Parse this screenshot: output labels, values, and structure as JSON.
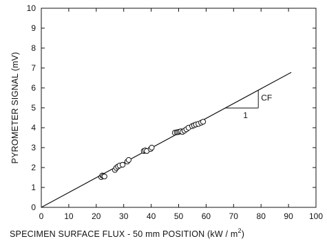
{
  "chart_data": {
    "type": "scatter",
    "title": "",
    "xlabel": "SPECIMEN SURFACE FLUX - 50  mm POSITION (kW / m",
    "xlabel_superscript": "2",
    "xlabel_suffix": ")",
    "ylabel": "PYROMETER SIGNAL (mV)",
    "xlim": [
      0,
      100
    ],
    "ylim": [
      0,
      10
    ],
    "x_ticks": [
      "0",
      "10",
      "20",
      "30",
      "40",
      "50",
      "60",
      "70",
      "80",
      "90",
      "100"
    ],
    "y_ticks": [
      "0",
      "1",
      "2",
      "3",
      "4",
      "5",
      "6",
      "7",
      "8",
      "9",
      "10"
    ],
    "grid": false,
    "points": [
      [
        21.8,
        1.52
      ],
      [
        22.2,
        1.6
      ],
      [
        22.6,
        1.57
      ],
      [
        23.0,
        1.55
      ],
      [
        26.8,
        1.88
      ],
      [
        27.3,
        1.98
      ],
      [
        27.9,
        2.05
      ],
      [
        28.5,
        2.1
      ],
      [
        29.6,
        2.14
      ],
      [
        31.3,
        2.3
      ],
      [
        31.8,
        2.38
      ],
      [
        37.3,
        2.83
      ],
      [
        37.8,
        2.86
      ],
      [
        38.4,
        2.83
      ],
      [
        39.8,
        2.93
      ],
      [
        40.2,
        3.0
      ],
      [
        48.6,
        3.75
      ],
      [
        49.3,
        3.77
      ],
      [
        49.8,
        3.78
      ],
      [
        50.3,
        3.8
      ],
      [
        50.8,
        3.82
      ],
      [
        51.4,
        3.79
      ],
      [
        52.1,
        3.85
      ],
      [
        52.8,
        3.92
      ],
      [
        53.6,
        4.0
      ],
      [
        54.9,
        4.08
      ],
      [
        55.6,
        4.12
      ],
      [
        56.3,
        4.16
      ],
      [
        57.2,
        4.19
      ],
      [
        58.2,
        4.25
      ],
      [
        58.9,
        4.3
      ]
    ],
    "fit_line": {
      "x": [
        0,
        91
      ],
      "y": [
        0,
        6.78
      ]
    },
    "annotation": {
      "slope_label": "CF",
      "run_label": "1"
    }
  }
}
